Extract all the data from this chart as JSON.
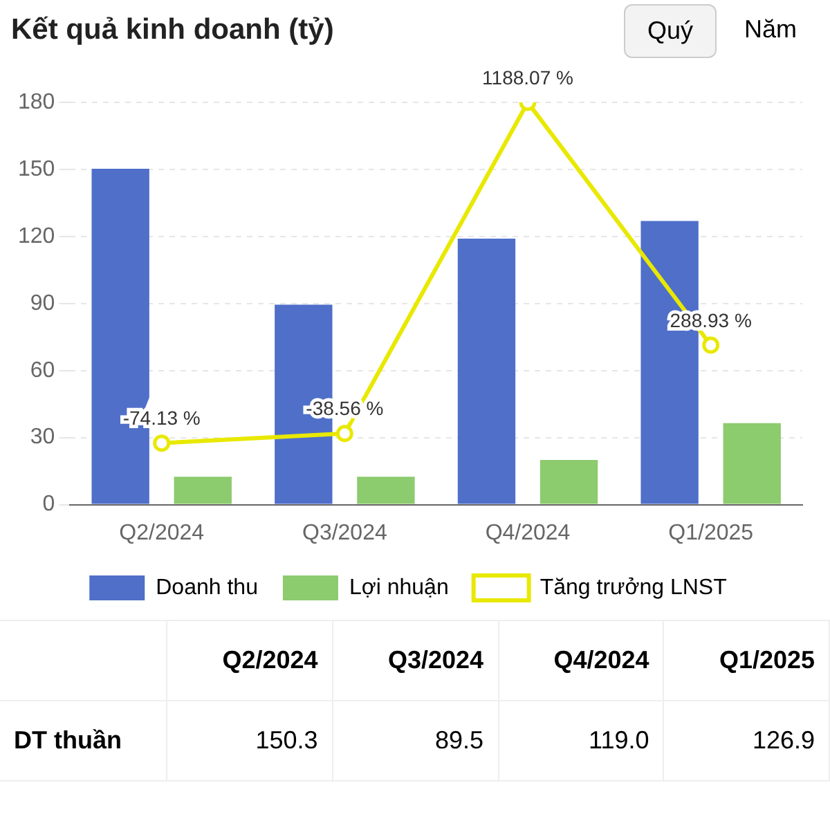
{
  "chart_data": {
    "type": "bar",
    "title": "Kết quả kinh doanh (tỷ)",
    "categories": [
      "Q2/2024",
      "Q3/2024",
      "Q4/2024",
      "Q1/2025"
    ],
    "series": [
      {
        "name": "Doanh thu",
        "color": "#4f6fc9",
        "values": [
          150.3,
          89.5,
          119.0,
          126.9
        ]
      },
      {
        "name": "Lợi nhuận",
        "color": "#8ccb6e",
        "values": [
          12.5,
          12.5,
          20,
          36.5
        ]
      },
      {
        "name": "Tăng trưởng LNST",
        "type": "line",
        "axis": "y2",
        "color": "#e8e800",
        "values": [
          -74.13,
          -38.56,
          1188.07,
          288.93
        ],
        "value_labels": [
          "-74.13 %",
          "-38.56 %",
          "1188.07 %",
          "288.93 %"
        ]
      }
    ],
    "ylim": [
      0,
      180
    ],
    "yticks": [
      0,
      30,
      60,
      90,
      120,
      150,
      180
    ],
    "y2lim": [
      -302,
      1188.07
    ],
    "grid": "y",
    "legend": "bottom",
    "marker": "circle",
    "line_style": "solid",
    "annotations": [
      "Quý",
      "Năm",
      "DT thuần",
      "150.3",
      "89.5",
      "119.0",
      "126.9"
    ]
  }
}
